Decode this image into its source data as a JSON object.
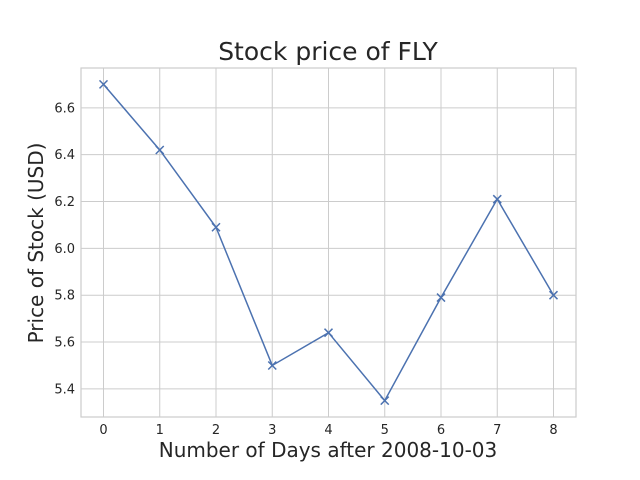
{
  "chart_data": {
    "type": "line",
    "title": "Stock price of FLY",
    "xlabel": "Number of Days after 2008-10-03",
    "ylabel": "Price of Stock (USD)",
    "xlim": [
      -0.4,
      8.4
    ],
    "ylim": [
      5.28,
      6.77
    ],
    "xticks": [
      0,
      1,
      2,
      3,
      4,
      5,
      6,
      7,
      8
    ],
    "xtick_labels": [
      "0",
      "1",
      "2",
      "3",
      "4",
      "5",
      "6",
      "7",
      "8"
    ],
    "yticks": [
      5.4,
      5.6,
      5.8,
      6.0,
      6.2,
      6.4,
      6.6
    ],
    "ytick_labels": [
      "5.4",
      "5.6",
      "5.8",
      "6.0",
      "6.2",
      "6.4",
      "6.6"
    ],
    "grid": true,
    "marker": "x",
    "color": "#4c72b0",
    "series": [
      {
        "x": [
          0,
          1,
          2,
          3,
          4,
          5,
          6,
          7,
          8
        ],
        "y": [
          6.7,
          6.42,
          6.09,
          5.5,
          5.64,
          5.35,
          5.79,
          6.21,
          5.8
        ]
      }
    ]
  }
}
